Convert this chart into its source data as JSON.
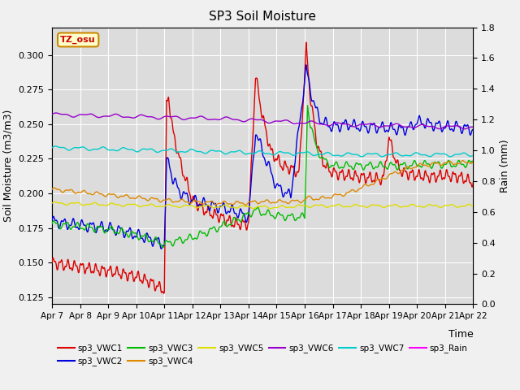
{
  "title": "SP3 Soil Moisture",
  "xlabel": "Time",
  "ylabel_left": "Soil Moisture (m3/m3)",
  "ylabel_right": "Rain (mm)",
  "ylim_left": [
    0.12,
    0.32
  ],
  "ylim_right": [
    0.0,
    1.8
  ],
  "x_tick_labels": [
    "Apr 7",
    "Apr 8",
    "Apr 9",
    "Apr 10",
    "Apr 11",
    "Apr 12",
    "Apr 13",
    "Apr 14",
    "Apr 15",
    "Apr 16",
    "Apr 17",
    "Apr 18",
    "Apr 19",
    "Apr 20",
    "Apr 21",
    "Apr 22"
  ],
  "timezone_label": "TZ_osu",
  "background_color": "#dcdcdc",
  "fig_color": "#f0f0f0",
  "colors": {
    "VWC1": "#dd0000",
    "VWC2": "#0000dd",
    "VWC3": "#00bb00",
    "VWC4": "#dd8800",
    "VWC5": "#dddd00",
    "VWC6": "#9900cc",
    "VWC7": "#00cccc",
    "Rain": "#ff00ff"
  }
}
